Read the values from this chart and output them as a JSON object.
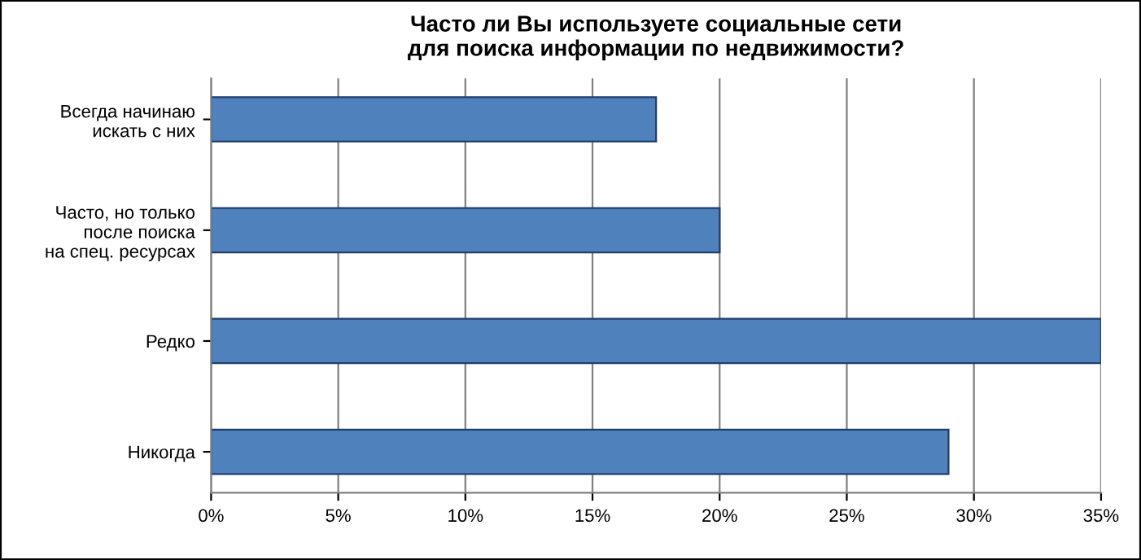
{
  "chart_data": {
    "type": "bar",
    "orientation": "horizontal",
    "title": "Часто ли Вы используете социальные сети\nдля поиска информации по недвижимости?",
    "categories": [
      "Всегда начинаю\nискать с них",
      "Часто, но только\nпосле поиска\nна спец. ресурсах",
      "Редко",
      "Никогда"
    ],
    "values": [
      17.5,
      20,
      35,
      29
    ],
    "color": "#4f81bd",
    "xlim": [
      0,
      35
    ],
    "xticks": [
      {
        "value": 0,
        "label": "0%"
      },
      {
        "value": 5,
        "label": "5%"
      },
      {
        "value": 10,
        "label": "10%"
      },
      {
        "value": 15,
        "label": "15%"
      },
      {
        "value": 20,
        "label": "20%"
      },
      {
        "value": 25,
        "label": "25%"
      },
      {
        "value": 30,
        "label": "30%"
      },
      {
        "value": 35,
        "label": "35%"
      }
    ],
    "grid": "x"
  }
}
